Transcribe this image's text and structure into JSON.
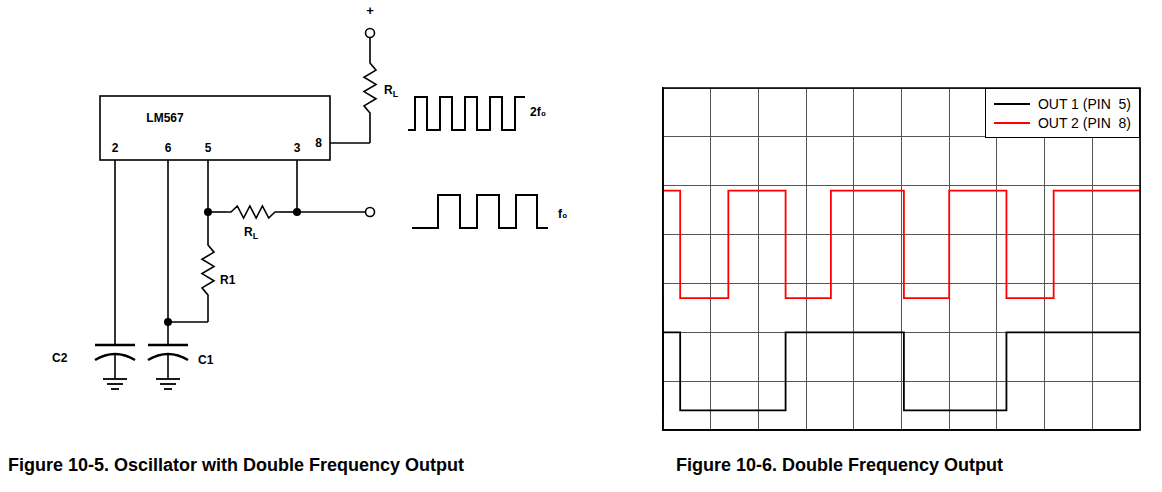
{
  "diagram": {
    "chip": "LM567",
    "pins": {
      "pin2": "2",
      "pin6": "6",
      "pin5": "5",
      "pin3": "3",
      "pin8": "8"
    },
    "supply": "+",
    "pullup_resistor": {
      "text": "R",
      "subscript": "L"
    },
    "load_resistor": {
      "text": "R",
      "subscript": "L"
    },
    "timing_resistor": "R1",
    "capacitor_pin2": "C2",
    "capacitor_pin6": "C1",
    "output_pin8": "2f₀",
    "output_pin3": "f₀",
    "caption": "Figure 10-5. Oscillator with Double Frequency Output"
  },
  "chart_data": {
    "type": "line",
    "title": "Figure 10-6. Double Frequency Output",
    "series": [
      {
        "name": "OUT 1 (PIN  5)",
        "color": "#000000",
        "line_style": "step",
        "marker": "none",
        "x": [
          0,
          0.36,
          2.57,
          5.05,
          7.2,
          9.66,
          10
        ],
        "values": [
          0.4,
          2.0,
          0.4,
          2.0,
          0.4,
          2.0,
          2.0
        ]
      },
      {
        "name": "OUT 2 (PIN  8)",
        "color": "#ff0000",
        "line_style": "step",
        "marker": "none",
        "x": [
          0,
          0.36,
          1.37,
          2.57,
          3.52,
          5.05,
          6.0,
          7.2,
          8.19,
          9.62,
          10
        ],
        "values": [
          2.7,
          4.9,
          2.7,
          4.9,
          2.7,
          4.9,
          2.7,
          4.9,
          2.7,
          4.9,
          4.9
        ]
      }
    ],
    "xlim": [
      0,
      10
    ],
    "xticks": [
      0,
      1,
      2,
      3,
      4,
      5,
      6,
      7,
      8,
      9,
      10
    ],
    "ylim": [
      0,
      7
    ],
    "yticks": [
      0,
      1,
      2,
      3,
      4,
      5,
      6,
      7
    ],
    "grid": true,
    "tick_labels": false,
    "legend": "upper right"
  }
}
